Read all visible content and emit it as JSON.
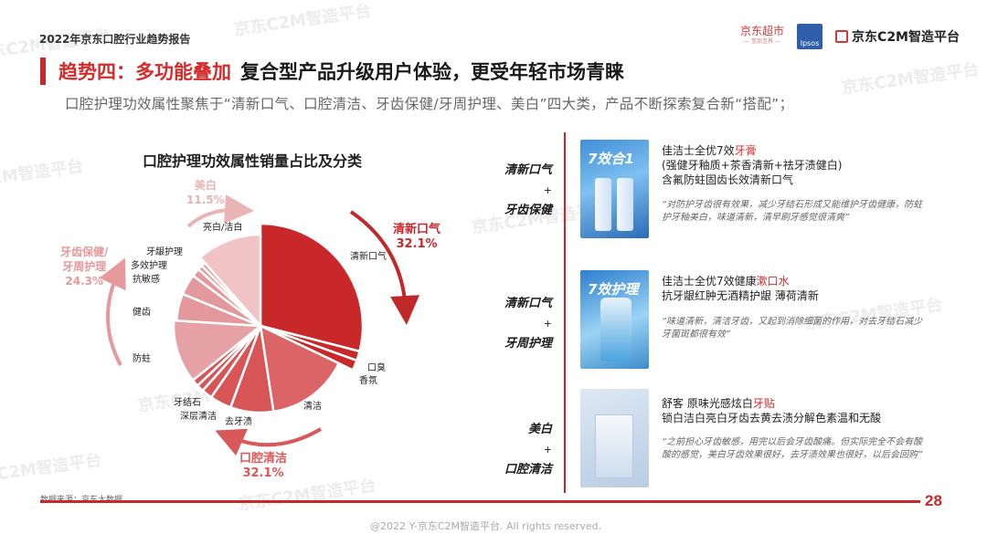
{
  "header": {
    "report_title": "2022年京东口腔行业趋势报告",
    "logos": {
      "jd_supermarket": "京东超市",
      "jd_supermarket_sub": "— 至品至界 —",
      "ipsos": "Ipsos",
      "c2m": "京东C2M智造平台"
    }
  },
  "headline": {
    "trend_label": "趋势四：多功能叠加",
    "title": "复合型产品升级用户体验，更受年轻市场青睐",
    "subtitle": "口腔护理功效属性聚焦于“清新口气、口腔清洁、牙齿保健/牙周护理、美白”四大类，产品不断探索复合新“搭配”；"
  },
  "watermark": "京东C2M智造平台",
  "chart_data": {
    "type": "pie",
    "title": "口腔护理功效属性销量占比及分类",
    "note": "Slice sizes estimated from pixel angles; group totals are labeled on the chart.",
    "groups": [
      {
        "name": "清新口气",
        "value": 32.1,
        "color": "#c8282a",
        "label": "清新口气",
        "pct": "32.1%"
      },
      {
        "name": "口腔清洁",
        "value": 32.1,
        "color": "#d9585a",
        "label": "口腔清洁",
        "pct": "32.1%"
      },
      {
        "name": "牙齿保健/牙周护理",
        "value": 24.3,
        "color": "#e5999b",
        "label": "牙齿保健/牙周护理",
        "pct": "24.3%"
      },
      {
        "name": "美白",
        "value": 11.5,
        "color": "#f0c4c5",
        "label": "美白",
        "pct": "11.5%"
      }
    ],
    "slices": [
      {
        "label": "清新口气",
        "group": "清新口气",
        "value": 29.0,
        "color": "#c8282a"
      },
      {
        "label": "口臭",
        "group": "清新口气",
        "value": 1.5,
        "color": "#c8282a"
      },
      {
        "label": "香氛",
        "group": "清新口气",
        "value": 1.6,
        "color": "#c8282a"
      },
      {
        "label": "清洁",
        "group": "口腔清洁",
        "value": 15.5,
        "color": "#db6466"
      },
      {
        "label": "去牙渍",
        "group": "口腔清洁",
        "value": 8.0,
        "color": "#d85557"
      },
      {
        "label": "深层清洁",
        "group": "口腔清洁",
        "value": 4.0,
        "color": "#d85557"
      },
      {
        "label": "",
        "group": "口腔清洁",
        "value": 2.0,
        "color": "#d85557"
      },
      {
        "label": "牙结石",
        "group": "口腔清洁",
        "value": 1.3,
        "color": "#d85557"
      },
      {
        "label": "",
        "group": "口腔清洁",
        "value": 1.3,
        "color": "#d85557"
      },
      {
        "label": "防蛀",
        "group": "牙齿保健/牙周护理",
        "value": 11.8,
        "color": "#e5a1a3"
      },
      {
        "label": "健齿",
        "group": "牙齿保健/牙周护理",
        "value": 5.2,
        "color": "#e3999b"
      },
      {
        "label": "抗敏感",
        "group": "牙齿保健/牙周护理",
        "value": 4.0,
        "color": "#e3999b"
      },
      {
        "label": "多效护理",
        "group": "牙齿保健/牙周护理",
        "value": 1.6,
        "color": "#e3999b"
      },
      {
        "label": "",
        "group": "牙齿保健/牙周护理",
        "value": 0.9,
        "color": "#e3999b"
      },
      {
        "label": "牙龈护理",
        "group": "牙齿保健/牙周护理",
        "value": 0.8,
        "color": "#e3999b"
      },
      {
        "label": "亮白/洁白",
        "group": "美白",
        "value": 11.5,
        "color": "#f0c4c5"
      }
    ],
    "source": "数据来源：京东大数据"
  },
  "chart_labels": {
    "fresh": "清新口气",
    "bad_breath": "口臭",
    "fragrance": "香氛",
    "clean": "清洁",
    "stain": "去牙渍",
    "deep_clean": "深层清洁",
    "tartar": "牙结石",
    "anticavity": "防蛀",
    "healthy": "健齿",
    "sensitive": "抗敏感",
    "multi": "多效护理",
    "gum": "牙龈护理",
    "whitening": "亮白/洁白"
  },
  "products": [
    {
      "combo_top": "清新口气",
      "combo_plus": "+",
      "combo_bottom": "牙齿保健",
      "image_tag": "7效合1",
      "name_prefix": "佳洁士全优7效",
      "name_highlight": "牙膏",
      "desc_lines": [
        "(强健牙釉质+茶香清新+祛牙渍健白)",
        "含氟防蛀固齿长效清新口气"
      ],
      "quote": "“对防护牙齿很有效果，减少牙结石形成又能维护牙齿健康，防蛀护牙釉美白，味道清新，清早刷牙感觉很清爽”"
    },
    {
      "combo_top": "清新口气",
      "combo_plus": "+",
      "combo_bottom": "牙周护理",
      "image_tag": "7效护理",
      "name_prefix": "佳洁士全优7效健康",
      "name_highlight": "漱口水",
      "desc_lines": [
        "抗牙龈红肿无酒精护龈 薄荷清新"
      ],
      "quote": "“味道清新，清洁牙齿，又起到消除细菌的作用，对去牙结石减少牙菌斑都很有效”"
    },
    {
      "combo_top": "美白",
      "combo_plus": "+",
      "combo_bottom": "口腔清洁",
      "image_tag": "",
      "name_prefix": "舒客 原味光感炫白",
      "name_highlight": "牙贴",
      "desc_lines": [
        "锁白洁白亮白牙齿去黄去渍分解色素温和无酸"
      ],
      "quote": "“之前担心牙齿敏感，用完以后会牙齿酸痛。但实际完全不会有酸酸的感觉，美白牙齿效果很好，去牙渍效果也很好，以后会回购”"
    }
  ],
  "footer": {
    "page_number": "28",
    "copyright": "@2022 Y-京东C2M智造平台. All rights reserved."
  }
}
